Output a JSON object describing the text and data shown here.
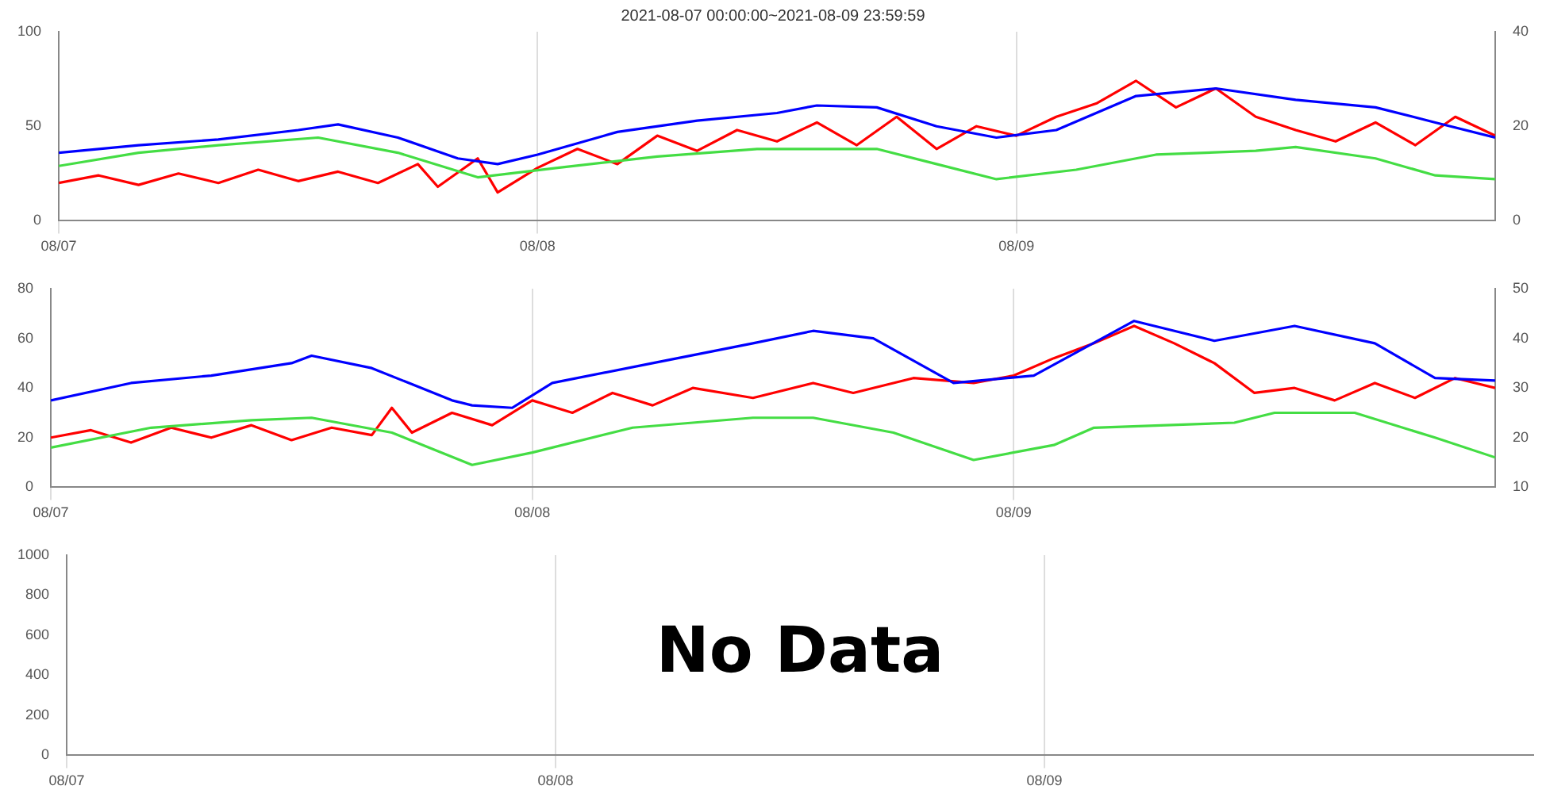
{
  "chart_data": [
    {
      "type": "line",
      "title": "2021-08-07 00:00:00~2021-08-09 23:59:59",
      "xlim": [
        "2021-08-07T00:00",
        "2021-08-10T00:00"
      ],
      "xticks": [
        {
          "value": "2021-08-07",
          "label": "08/07"
        },
        {
          "value": "2021-08-08",
          "label": "08/08"
        },
        {
          "value": "2021-08-09",
          "label": "08/09"
        }
      ],
      "ylim": [
        0,
        100
      ],
      "yticks": [
        0,
        50,
        100
      ],
      "y2lim": [
        0,
        40
      ],
      "y2ticks": [
        0,
        20,
        40
      ],
      "grid": "x",
      "marker": "none",
      "series": [
        {
          "color": "#44dd44",
          "x": [
            "2021-08-07T00:00",
            "2021-08-07T04:00",
            "2021-08-07T08:00",
            "2021-08-07T13:00",
            "2021-08-07T17:00",
            "2021-08-07T21:00",
            "2021-08-08T01:00",
            "2021-08-08T06:00",
            "2021-08-08T11:00",
            "2021-08-08T17:00",
            "2021-08-08T20:00",
            "2021-08-08T23:00",
            "2021-08-09T03:00",
            "2021-08-09T07:00",
            "2021-08-09T12:00",
            "2021-08-09T14:00",
            "2021-08-09T18:00",
            "2021-08-09T21:00",
            "2021-08-10T00:00"
          ],
          "values": [
            29,
            36,
            40,
            44,
            36,
            23,
            28,
            34,
            38,
            38,
            30,
            22,
            27,
            35,
            37,
            39,
            33,
            24,
            22
          ]
        },
        {
          "color": "#0000ff",
          "x": [
            "2021-08-07T00:00",
            "2021-08-07T04:00",
            "2021-08-07T08:00",
            "2021-08-07T12:00",
            "2021-08-07T14:00",
            "2021-08-07T17:00",
            "2021-08-07T20:00",
            "2021-08-07T22:00",
            "2021-08-08T00:00",
            "2021-08-08T04:00",
            "2021-08-08T08:00",
            "2021-08-08T12:00",
            "2021-08-08T14:00",
            "2021-08-08T17:00",
            "2021-08-08T20:00",
            "2021-08-08T23:00",
            "2021-08-09T02:00",
            "2021-08-09T06:00",
            "2021-08-09T10:00",
            "2021-08-09T14:00",
            "2021-08-09T18:00",
            "2021-08-09T21:00",
            "2021-08-10T00:00"
          ],
          "values": [
            36,
            40,
            43,
            48,
            51,
            44,
            33,
            30,
            35,
            47,
            53,
            57,
            61,
            60,
            50,
            44,
            48,
            66,
            70,
            64,
            60,
            52,
            44
          ]
        },
        {
          "color": "#ff0000",
          "x": [
            "2021-08-07T00:00",
            "2021-08-07T02:00",
            "2021-08-07T04:00",
            "2021-08-07T06:00",
            "2021-08-07T08:00",
            "2021-08-07T10:00",
            "2021-08-07T12:00",
            "2021-08-07T14:00",
            "2021-08-07T16:00",
            "2021-08-07T18:00",
            "2021-08-07T19:00",
            "2021-08-07T21:00",
            "2021-08-07T22:00",
            "2021-08-08T00:00",
            "2021-08-08T02:00",
            "2021-08-08T04:00",
            "2021-08-08T06:00",
            "2021-08-08T08:00",
            "2021-08-08T10:00",
            "2021-08-08T12:00",
            "2021-08-08T14:00",
            "2021-08-08T16:00",
            "2021-08-08T18:00",
            "2021-08-08T20:00",
            "2021-08-08T22:00",
            "2021-08-09T00:00",
            "2021-08-09T02:00",
            "2021-08-09T04:00",
            "2021-08-09T06:00",
            "2021-08-09T08:00",
            "2021-08-09T10:00",
            "2021-08-09T12:00",
            "2021-08-09T14:00",
            "2021-08-09T16:00",
            "2021-08-09T18:00",
            "2021-08-09T20:00",
            "2021-08-09T22:00",
            "2021-08-10T00:00"
          ],
          "values": [
            20,
            24,
            19,
            25,
            20,
            27,
            21,
            26,
            20,
            30,
            18,
            33,
            15,
            28,
            38,
            30,
            45,
            37,
            48,
            42,
            52,
            40,
            55,
            38,
            50,
            45,
            55,
            62,
            74,
            60,
            70,
            55,
            48,
            42,
            52,
            40,
            55,
            45
          ]
        }
      ]
    },
    {
      "type": "line",
      "xlim": [
        "2021-08-07T00:00",
        "2021-08-10T00:00"
      ],
      "xticks": [
        {
          "value": "2021-08-07",
          "label": "08/07"
        },
        {
          "value": "2021-08-08",
          "label": "08/08"
        },
        {
          "value": "2021-08-09",
          "label": "08/09"
        }
      ],
      "ylim": [
        0,
        80
      ],
      "yticks": [
        0,
        20,
        40,
        60,
        80
      ],
      "y2lim": [
        10,
        50
      ],
      "y2ticks": [
        10,
        20,
        30,
        40,
        50
      ],
      "grid": "x",
      "marker": "none",
      "series": [
        {
          "color": "#44dd44",
          "x": [
            "2021-08-07T00:00",
            "2021-08-07T05:00",
            "2021-08-07T10:00",
            "2021-08-07T13:00",
            "2021-08-07T17:00",
            "2021-08-07T21:00",
            "2021-08-08T00:00",
            "2021-08-08T05:00",
            "2021-08-08T11:00",
            "2021-08-08T14:00",
            "2021-08-08T18:00",
            "2021-08-08T22:00",
            "2021-08-09T02:00",
            "2021-08-09T04:00",
            "2021-08-09T11:00",
            "2021-08-09T13:00",
            "2021-08-09T17:00",
            "2021-08-09T21:00",
            "2021-08-10T00:00"
          ],
          "values": [
            16,
            24,
            27,
            28,
            22,
            9,
            14,
            24,
            28,
            28,
            22,
            11,
            17,
            24,
            26,
            30,
            30,
            20,
            12
          ]
        },
        {
          "color": "#0000ff",
          "x": [
            "2021-08-07T00:00",
            "2021-08-07T04:00",
            "2021-08-07T08:00",
            "2021-08-07T12:00",
            "2021-08-07T13:00",
            "2021-08-07T16:00",
            "2021-08-07T20:00",
            "2021-08-07T21:00",
            "2021-08-07T23:00",
            "2021-08-08T01:00",
            "2021-08-08T06:00",
            "2021-08-08T11:00",
            "2021-08-08T14:00",
            "2021-08-08T17:00",
            "2021-08-08T21:00",
            "2021-08-09T01:00",
            "2021-08-09T06:00",
            "2021-08-09T10:00",
            "2021-08-09T14:00",
            "2021-08-09T18:00",
            "2021-08-09T21:00",
            "2021-08-10T00:00"
          ],
          "values": [
            35,
            42,
            45,
            50,
            53,
            48,
            35,
            33,
            32,
            42,
            50,
            58,
            63,
            60,
            42,
            45,
            67,
            59,
            65,
            58,
            44,
            43
          ]
        },
        {
          "color": "#ff0000",
          "x": [
            "2021-08-07T00:00",
            "2021-08-07T02:00",
            "2021-08-07T04:00",
            "2021-08-07T06:00",
            "2021-08-07T08:00",
            "2021-08-07T10:00",
            "2021-08-07T12:00",
            "2021-08-07T14:00",
            "2021-08-07T16:00",
            "2021-08-07T17:00",
            "2021-08-07T18:00",
            "2021-08-07T20:00",
            "2021-08-07T22:00",
            "2021-08-08T00:00",
            "2021-08-08T02:00",
            "2021-08-08T04:00",
            "2021-08-08T06:00",
            "2021-08-08T08:00",
            "2021-08-08T11:00",
            "2021-08-08T14:00",
            "2021-08-08T16:00",
            "2021-08-08T19:00",
            "2021-08-08T22:00",
            "2021-08-09T00:00",
            "2021-08-09T02:00",
            "2021-08-09T04:00",
            "2021-08-09T06:00",
            "2021-08-09T08:00",
            "2021-08-09T10:00",
            "2021-08-09T12:00",
            "2021-08-09T14:00",
            "2021-08-09T16:00",
            "2021-08-09T18:00",
            "2021-08-09T20:00",
            "2021-08-09T22:00",
            "2021-08-10T00:00"
          ],
          "values": [
            20,
            23,
            18,
            24,
            20,
            25,
            19,
            24,
            21,
            32,
            22,
            30,
            25,
            35,
            30,
            38,
            33,
            40,
            36,
            42,
            38,
            44,
            42,
            45,
            52,
            58,
            65,
            58,
            50,
            38,
            40,
            35,
            42,
            36,
            44,
            40
          ]
        }
      ]
    },
    {
      "type": "line",
      "xlim": [
        "2021-08-07T00:00",
        "2021-08-10T00:00"
      ],
      "xticks": [
        {
          "value": "2021-08-07",
          "label": "08/07"
        },
        {
          "value": "2021-08-08",
          "label": "08/08"
        },
        {
          "value": "2021-08-09",
          "label": "08/09"
        }
      ],
      "ylim": [
        0,
        1000
      ],
      "yticks": [
        0,
        200,
        400,
        600,
        800,
        1000
      ],
      "grid": "x",
      "annotations": [
        "No Data"
      ]
    }
  ]
}
